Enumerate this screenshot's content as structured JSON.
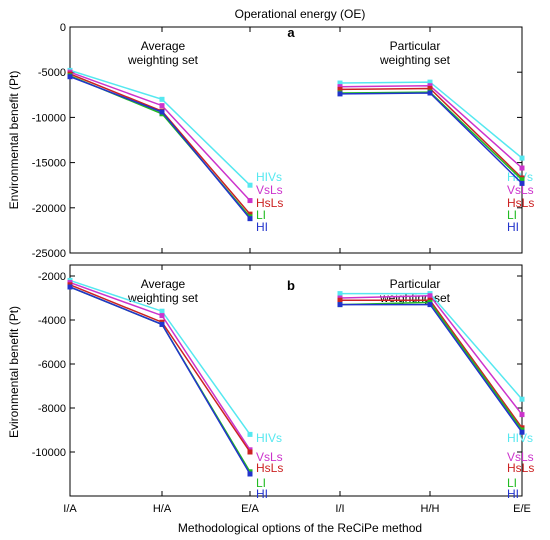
{
  "figure": {
    "title": "Operational energy (OE)",
    "xlabel": "Methodological options of the ReCiPe method",
    "ylabel": "Environmental benefit (Pt)",
    "ylabel_b": "Evironmental benefit (Pt)"
  },
  "chart_data": [
    {
      "type": "line",
      "panel": "a",
      "group_labels": [
        "Average weighting set",
        "Particular weighting set"
      ],
      "categories": [
        "I/A",
        "H/A",
        "E/A",
        "I/I",
        "H/H",
        "E/E"
      ],
      "ylim": [
        -25000,
        0
      ],
      "yticks": [
        0,
        -5000,
        -10000,
        -15000,
        -20000,
        -25000
      ],
      "grid": false,
      "series": [
        {
          "name": "HIVs",
          "color": "#55e8f0",
          "values": [
            -4800,
            -8000,
            -17500,
            -6200,
            -6100,
            -14500
          ]
        },
        {
          "name": "VsLs",
          "color": "#cc33cc",
          "values": [
            -5000,
            -8700,
            -19200,
            -6600,
            -6500,
            -15600
          ]
        },
        {
          "name": "HsLs",
          "color": "#cc2222",
          "values": [
            -5200,
            -9300,
            -20700,
            -6900,
            -6800,
            -16700
          ]
        },
        {
          "name": "LI",
          "color": "#22bb22",
          "values": [
            -5400,
            -9600,
            -21000,
            -7300,
            -7200,
            -16900
          ]
        },
        {
          "name": "HI",
          "color": "#2233cc",
          "values": [
            -5500,
            -9400,
            -21200,
            -7400,
            -7300,
            -17300
          ]
        }
      ]
    },
    {
      "type": "line",
      "panel": "b",
      "group_labels": [
        "Average weighting set",
        "Particular weighting set"
      ],
      "categories": [
        "I/A",
        "H/A",
        "E/A",
        "I/I",
        "H/H",
        "E/E"
      ],
      "ylim": [
        -12000,
        -1500
      ],
      "yticks": [
        -2000,
        -4000,
        -6000,
        -8000,
        -10000
      ],
      "grid": false,
      "series": [
        {
          "name": "HIVs",
          "color": "#55e8f0",
          "values": [
            -2200,
            -3600,
            -9200,
            -2800,
            -2800,
            -7600
          ]
        },
        {
          "name": "VsLs",
          "color": "#cc33cc",
          "values": [
            -2300,
            -3800,
            -9900,
            -3000,
            -2900,
            -8300
          ]
        },
        {
          "name": "HsLs",
          "color": "#cc2222",
          "values": [
            -2400,
            -4100,
            -10000,
            -3100,
            -3100,
            -8900
          ]
        },
        {
          "name": "LI",
          "color": "#22bb22",
          "values": [
            -2500,
            -4200,
            -10900,
            -3300,
            -3200,
            -9000
          ]
        },
        {
          "name": "HI",
          "color": "#2233cc",
          "values": [
            -2500,
            -4200,
            -11000,
            -3300,
            -3300,
            -9100
          ]
        }
      ]
    }
  ]
}
